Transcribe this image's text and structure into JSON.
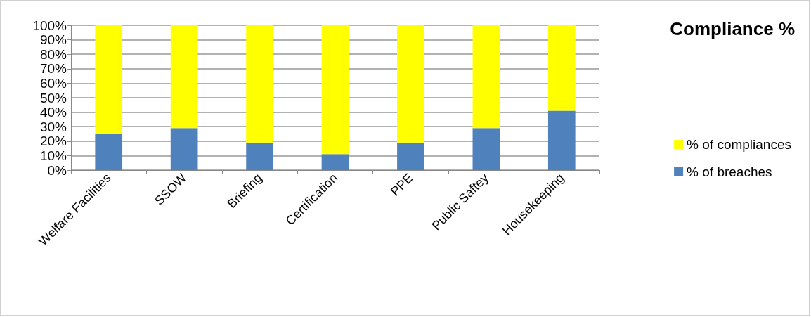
{
  "chart_data": {
    "type": "bar",
    "title": "Compliance %",
    "categories": [
      "Welfare Facilities",
      "SSOW",
      "Briefing",
      "Certification",
      "PPE",
      "Public Saftey",
      "Housekeeping"
    ],
    "series": [
      {
        "name": "% of breaches",
        "color": "#4f81bd",
        "values": [
          25,
          29,
          19,
          11,
          19,
          29,
          41
        ]
      },
      {
        "name": "% of compliances",
        "color": "#ffff00",
        "values": [
          75,
          71,
          81,
          89,
          81,
          71,
          59
        ]
      }
    ],
    "stacked": true,
    "ylim": [
      0,
      100
    ],
    "yticks": [
      {
        "value": 0,
        "label": "0%"
      },
      {
        "value": 10,
        "label": "10%"
      },
      {
        "value": 20,
        "label": "20%"
      },
      {
        "value": 30,
        "label": "30%"
      },
      {
        "value": 40,
        "label": "40%"
      },
      {
        "value": 50,
        "label": "50%"
      },
      {
        "value": 60,
        "label": "60%"
      },
      {
        "value": 70,
        "label": "70%"
      },
      {
        "value": 80,
        "label": "80%"
      },
      {
        "value": 90,
        "label": "90%"
      },
      {
        "value": 100,
        "label": "100%"
      }
    ],
    "grid": "y",
    "legend": "right"
  }
}
